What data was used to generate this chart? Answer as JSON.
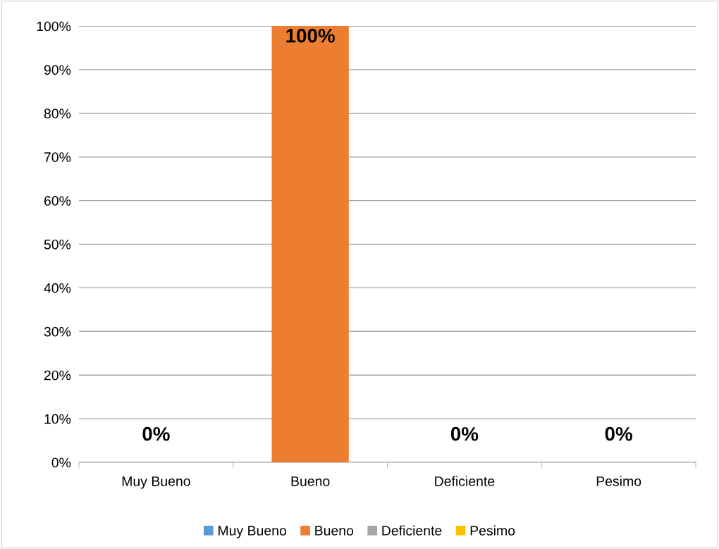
{
  "chart_data": {
    "type": "bar",
    "categories": [
      "Muy Bueno",
      "Bueno",
      "Deficiente",
      "Pesimo"
    ],
    "series": [
      {
        "name": "Muy Bueno",
        "color": "#5b9bd5",
        "values": [
          0,
          null,
          null,
          null
        ],
        "value_labels": [
          "0%",
          null,
          null,
          null
        ]
      },
      {
        "name": "Bueno",
        "color": "#ed7d31",
        "values": [
          null,
          100,
          null,
          null
        ],
        "value_labels": [
          null,
          "100%",
          null,
          null
        ]
      },
      {
        "name": "Deficiente",
        "color": "#a5a5a5",
        "values": [
          null,
          null,
          0,
          null
        ],
        "value_labels": [
          null,
          null,
          "0%",
          null
        ]
      },
      {
        "name": "Pesimo",
        "color": "#ffc000",
        "values": [
          null,
          null,
          null,
          0
        ],
        "value_labels": [
          null,
          null,
          null,
          "0%"
        ]
      }
    ],
    "ylim": [
      0,
      100
    ],
    "yticks": [
      {
        "value": 0,
        "label": "0%"
      },
      {
        "value": 10,
        "label": "10%"
      },
      {
        "value": 20,
        "label": "20%"
      },
      {
        "value": 30,
        "label": "30%"
      },
      {
        "value": 40,
        "label": "40%"
      },
      {
        "value": 50,
        "label": "50%"
      },
      {
        "value": 60,
        "label": "60%"
      },
      {
        "value": 70,
        "label": "70%"
      },
      {
        "value": 80,
        "label": "80%"
      },
      {
        "value": 90,
        "label": "90%"
      },
      {
        "value": 100,
        "label": "100%"
      }
    ],
    "grid": "y",
    "legend": "bottom"
  }
}
